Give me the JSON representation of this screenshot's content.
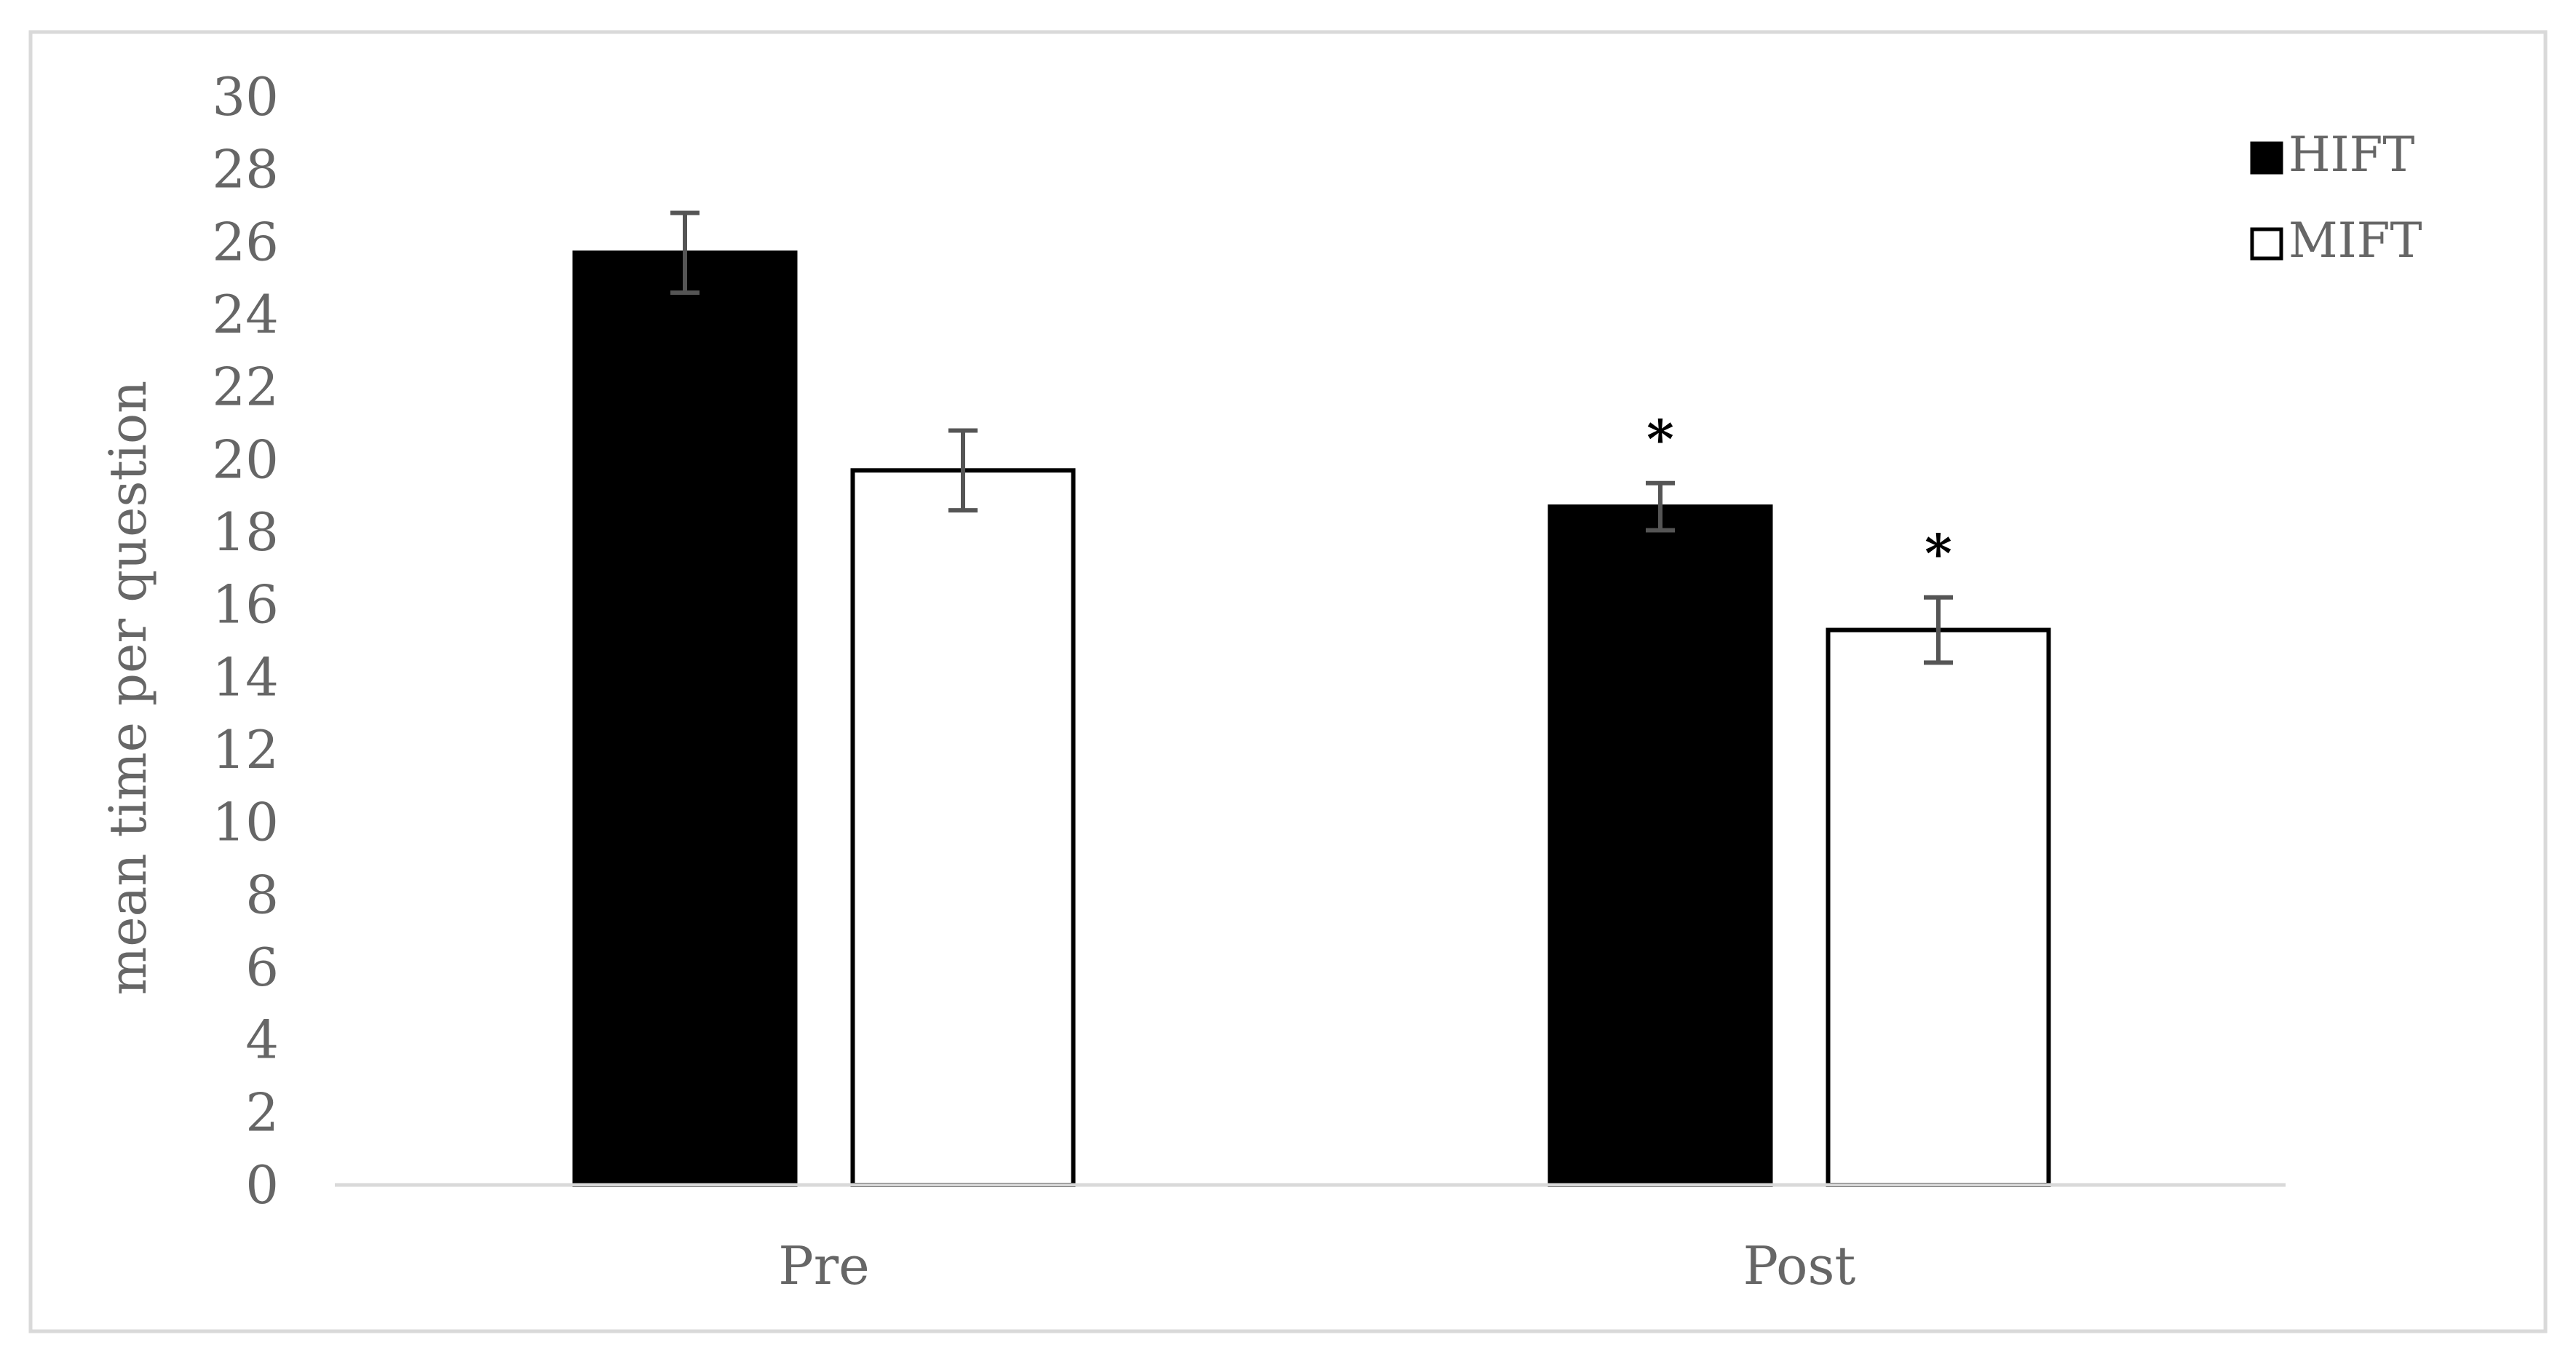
{
  "chart_data": {
    "type": "bar",
    "title": "",
    "xlabel": "",
    "ylabel": "mean time per question",
    "ylim": [
      0,
      30
    ],
    "yticks": [
      0,
      2,
      4,
      6,
      8,
      10,
      12,
      14,
      16,
      18,
      20,
      22,
      24,
      26,
      28,
      30
    ],
    "categories": [
      "Pre",
      "Post"
    ],
    "series": [
      {
        "name": "HIFT",
        "color": "#000000",
        "fill": "#000000",
        "values": [
          25.7,
          18.7
        ],
        "errors": [
          1.1,
          0.65
        ],
        "annotations": [
          "",
          "*"
        ]
      },
      {
        "name": "MIFT",
        "color": "#000000",
        "fill": "#ffffff",
        "values": [
          19.7,
          15.3
        ],
        "errors": [
          1.1,
          0.9
        ],
        "annotations": [
          "",
          "*"
        ]
      }
    ],
    "legend": "top-right",
    "grid": false,
    "axis_text_color": "#666666",
    "error_bar_color": "#555555"
  }
}
